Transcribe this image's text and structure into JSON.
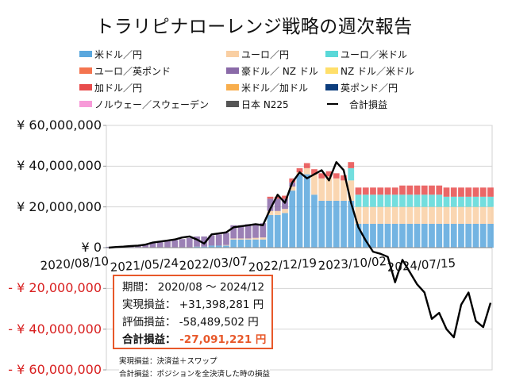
{
  "title": "トラリピナローレンジ戦略の週次報告",
  "legend": [
    {
      "label": "米ドル／円",
      "color": "#5aa7dd"
    },
    {
      "label": "ユーロ／円",
      "color": "#f9cfa3"
    },
    {
      "label": "ユーロ／米ドル",
      "color": "#5ad8d8"
    },
    {
      "label": "ユーロ／英ポンド",
      "color": "#f4744f"
    },
    {
      "label": "豪ドル／ NZ ドル",
      "color": "#8a6aa8"
    },
    {
      "label": "NZ ドル／米ドル",
      "color": "#ffdf6a"
    },
    {
      "label": "加ドル／円",
      "color": "#e84c4c"
    },
    {
      "label": "米ドル／加ドル",
      "color": "#f8ae4d"
    },
    {
      "label": "英ポンド／円",
      "color": "#0c3d7d"
    },
    {
      "label": "ノルウェー／スウェーデン",
      "color": "#f79ad8"
    },
    {
      "label": "日本 N225",
      "color": "#555555"
    },
    {
      "label": "合計損益",
      "color": "#000000",
      "line": true
    }
  ],
  "summary": {
    "period_label": "期間：",
    "period_value": "2020/08 ～ 2024/12",
    "realized_label": "実現損益：",
    "realized_value": "+31,398,281 円",
    "unrealized_label": "評価損益：",
    "unrealized_value": "-58,489,502 円",
    "total_label": "合計損益：",
    "total_value": "-27,091,221 円"
  },
  "notes": [
    "実現損益：決済益＋スワップ",
    "合計損益：ポジションを全決済した時の損益"
  ],
  "chart_data": {
    "type": "bar",
    "stacked": true,
    "unit": "円",
    "ylim": [
      -60000000,
      60000000
    ],
    "yticks": [
      {
        "value": 60000000,
        "label": "¥ 60,000,000"
      },
      {
        "value": 40000000,
        "label": "¥ 40,000,000"
      },
      {
        "value": 20000000,
        "label": "¥ 20,000,000"
      },
      {
        "value": 0,
        "label": "¥ 0"
      },
      {
        "value": -20000000,
        "label": "- ¥ 20,000,000"
      },
      {
        "value": -40000000,
        "label": "- ¥ 40,000,000"
      },
      {
        "value": -60000000,
        "label": "- ¥ 60,000,000"
      }
    ],
    "xtick_labels": [
      "2020/08/10",
      "2021/05/24",
      "2022/03/07",
      "2022/12/19",
      "2023/10/02",
      "2024/07/15"
    ],
    "grid": true,
    "legend_position": "top",
    "x": [
      "2020/08",
      "2020/09",
      "2020/10",
      "2020/11",
      "2020/12",
      "2021/01",
      "2021/02",
      "2021/03",
      "2021/04",
      "2021/05",
      "2021/06",
      "2021/07",
      "2021/08",
      "2021/09",
      "2021/10",
      "2021/11",
      "2021/12",
      "2022/01",
      "2022/02",
      "2022/03",
      "2022/04",
      "2022/05",
      "2022/06",
      "2022/07",
      "2022/08",
      "2022/09",
      "2022/10",
      "2022/11",
      "2022/12",
      "2023/01",
      "2023/02",
      "2023/03",
      "2023/04",
      "2023/05",
      "2023/06",
      "2023/07",
      "2023/08",
      "2023/09",
      "2023/10",
      "2023/11",
      "2023/12",
      "2024/01",
      "2024/02",
      "2024/03",
      "2024/04",
      "2024/05",
      "2024/06",
      "2024/07",
      "2024/08",
      "2024/09",
      "2024/10",
      "2024/11",
      "2024/12"
    ],
    "series": [
      {
        "name": "米ドル／円",
        "color": "#5aa7dd",
        "values": [
          0.2,
          0.2,
          0.2,
          0.2,
          0.2,
          0.2,
          0.2,
          0.2,
          0.2,
          0.2,
          0.2,
          0.2,
          0.5,
          0.5,
          1,
          1,
          1,
          4,
          4,
          4,
          4,
          4,
          16,
          16,
          17,
          28,
          36,
          36,
          26,
          23,
          23,
          23,
          23,
          23,
          11.7,
          11.7,
          11.7,
          11.7,
          11.7,
          11.7,
          11.7,
          11.7,
          11.7,
          11.7,
          11.7,
          11.7,
          11.7,
          11.7,
          11.7,
          11.7,
          11.7,
          11.7,
          11.7
        ]
      },
      {
        "name": "ユーロ／円",
        "color": "#f9cfa3",
        "values": [
          0,
          0,
          0,
          0,
          0,
          0,
          0,
          0,
          0,
          0,
          0,
          0,
          0,
          0,
          0,
          0,
          0.3,
          0.5,
          0.5,
          0.5,
          0.8,
          1,
          2,
          2,
          2,
          2,
          1,
          3,
          10,
          11,
          12,
          11,
          10,
          10,
          8.3,
          8.3,
          8.3,
          8.3,
          8.3,
          8.3,
          8.3,
          8.3,
          8.3,
          8.3,
          8.3,
          8.3,
          8.3,
          8.3,
          8.3,
          8.3,
          8.3,
          8.3,
          8.3
        ]
      },
      {
        "name": "ユーロ／米ドル",
        "color": "#5ad8d8",
        "values": [
          0,
          0,
          0,
          0,
          0,
          0,
          0,
          0,
          0,
          0,
          0,
          0,
          0,
          0,
          0,
          0,
          0,
          0,
          0,
          0,
          0,
          0,
          0,
          0,
          0,
          0,
          0,
          0,
          0,
          0,
          0,
          0,
          0,
          6,
          6,
          6,
          6,
          6,
          6,
          6,
          6,
          6,
          6,
          6,
          6,
          6,
          5,
          5,
          5,
          5,
          5,
          5,
          5
        ]
      },
      {
        "name": "豪ドル／ NZ ドル",
        "color": "#8a6aa8",
        "values": [
          0.2,
          0.3,
          0.5,
          0.8,
          1,
          1.5,
          2,
          2.5,
          3,
          3.5,
          4,
          4.5,
          5,
          5,
          5,
          5.5,
          6,
          6.5,
          6.5,
          7,
          7,
          7,
          6,
          6,
          5,
          2,
          0,
          0,
          0,
          0,
          0,
          0,
          0,
          0,
          0,
          0,
          0,
          0,
          0,
          0,
          0,
          0,
          0,
          0,
          0,
          0,
          0,
          0,
          0,
          0,
          0,
          0,
          0
        ]
      },
      {
        "name": "加ドル／円",
        "color": "#e84c4c",
        "values": [
          0,
          0,
          0,
          0,
          0,
          0,
          0,
          0,
          0,
          0,
          0,
          0,
          0,
          0,
          0,
          0,
          0,
          0,
          0,
          0,
          0,
          0,
          1,
          1,
          1.5,
          2,
          2,
          2.5,
          2.5,
          2.5,
          2.5,
          2.5,
          2.5,
          3,
          3.5,
          3.5,
          3.5,
          3.5,
          3.5,
          3.5,
          4.5,
          4.5,
          4.5,
          4.5,
          4.5,
          4.5,
          4.5,
          4.5,
          4.5,
          4.5,
          4.5,
          4.5,
          4.5
        ]
      },
      {
        "name": "合計損益",
        "type": "line",
        "color": "#000000",
        "values": [
          0,
          0.3,
          0.5,
          0.8,
          1,
          1.5,
          2.5,
          3,
          3.5,
          4,
          5,
          5.5,
          4,
          2,
          6.5,
          7,
          7.5,
          10,
          10.5,
          11,
          11.5,
          11,
          19,
          26,
          22,
          32,
          37,
          34,
          36,
          38,
          33,
          42,
          38,
          22,
          10,
          3.5,
          -2,
          -3,
          -4.5,
          -17,
          -6,
          -12,
          -18,
          -22,
          -35,
          -32,
          -40,
          -44,
          -28,
          -22,
          -36,
          -39,
          -27.1
        ]
      }
    ],
    "value_scale_note": "values in millions of yen"
  }
}
